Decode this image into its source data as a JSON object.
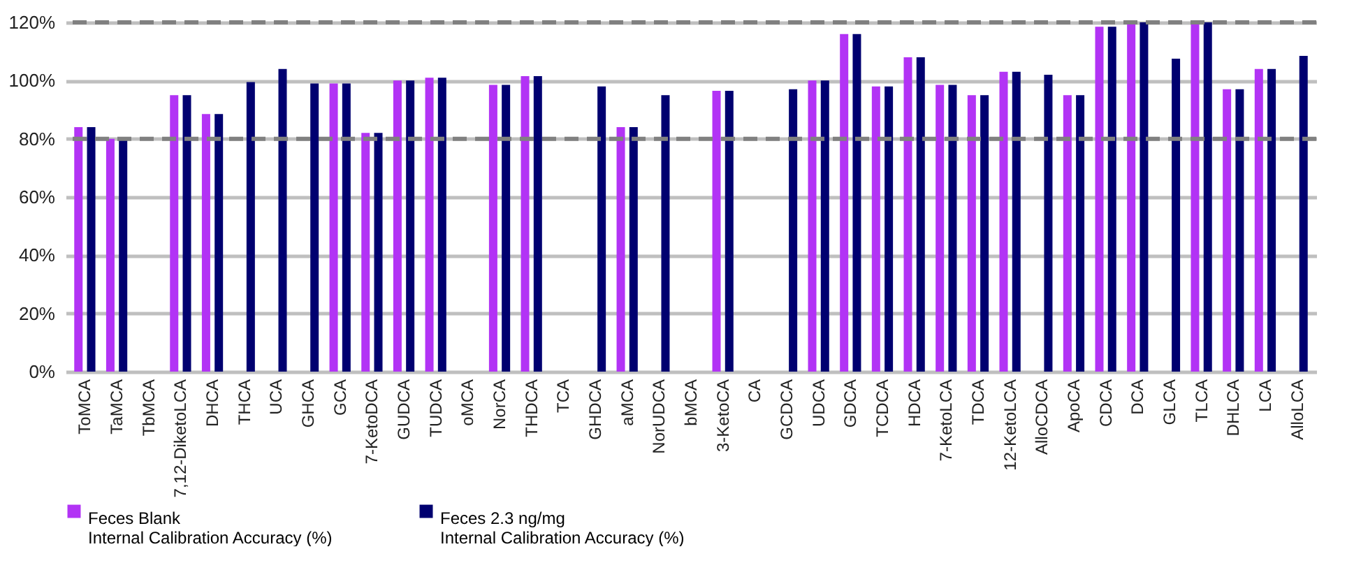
{
  "chart_data": {
    "type": "bar",
    "categories": [
      "ToMCA",
      "TaMCA",
      "TbMCA",
      "7,12-DiketoLCA",
      "DHCA",
      "THCA",
      "UCA",
      "GHCA",
      "GCA",
      "7-KetoDCA",
      "GUDCA",
      "TUDCA",
      "oMCA",
      "NorCA",
      "THDCA",
      "TCA",
      "GHDCA",
      "aMCA",
      "NorUDCA",
      "bMCA",
      "3-KetoCA",
      "CA",
      "GCDCA",
      "UDCA",
      "GDCA",
      "TCDCA",
      "HDCA",
      "7-KetoLCA",
      "TDCA",
      "12-KetoLCA",
      "AlloCDCA",
      "ApoCA",
      "CDCA",
      "DCA",
      "GLCA",
      "TLCA",
      "DHLCA",
      "LCA",
      "AlloLCA"
    ],
    "series": [
      {
        "name": "Feces Blank\nInternal Calibration Accuracy (%)",
        "color": "#b233f5",
        "values": [
          84,
          80,
          null,
          95,
          88.5,
          null,
          null,
          null,
          99,
          82,
          100,
          101,
          null,
          98.5,
          101.5,
          null,
          null,
          84,
          null,
          null,
          96.5,
          null,
          null,
          100,
          116,
          98,
          108,
          98.5,
          95,
          103,
          null,
          95,
          118.5,
          120,
          null,
          120,
          97,
          104,
          null
        ]
      },
      {
        "name": "Feces 2.3 ng/mg\nInternal Calibration Accuracy (%)",
        "color": "#000070",
        "values": [
          84,
          80,
          null,
          95,
          88.5,
          99.5,
          104,
          99,
          99,
          82,
          100,
          101,
          null,
          98.5,
          101.5,
          null,
          98,
          84,
          95,
          null,
          96.5,
          null,
          97,
          100,
          116,
          98,
          108,
          98.5,
          95,
          103,
          102,
          95,
          118.5,
          120,
          107.5,
          120,
          97,
          104,
          108.5
        ]
      }
    ],
    "ylim": [
      0,
      120
    ],
    "yticks": [
      {
        "value": 0,
        "label": "0%"
      },
      {
        "value": 20,
        "label": "20%"
      },
      {
        "value": 40,
        "label": "40%"
      },
      {
        "value": 60,
        "label": "60%"
      },
      {
        "value": 80,
        "label": "80%"
      },
      {
        "value": 100,
        "label": "100%"
      },
      {
        "value": 120,
        "label": "120%"
      }
    ],
    "grid": "y",
    "legend": "bottom",
    "ref_lines": [
      {
        "axis": "y",
        "value": 80,
        "color": "#808080",
        "line_style": "dashed"
      },
      {
        "axis": "y",
        "value": 120,
        "color": "#808080",
        "line_style": "dashed"
      }
    ]
  }
}
